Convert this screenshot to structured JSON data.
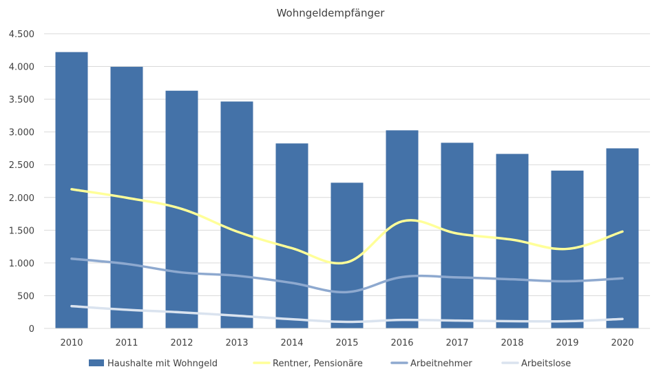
{
  "chart_data": {
    "type": "bar",
    "title": "Wohngeldempfänger",
    "xlabel": "",
    "ylabel": "",
    "categories": [
      "2010",
      "2011",
      "2012",
      "2013",
      "2014",
      "2015",
      "2016",
      "2017",
      "2018",
      "2019",
      "2020"
    ],
    "ylim": [
      0,
      4500
    ],
    "yticks": [
      0,
      500,
      1000,
      1500,
      2000,
      2500,
      3000,
      3500,
      4000,
      4500
    ],
    "ytick_labels": [
      "0",
      "500",
      "1.000",
      "1.500",
      "2.000",
      "2.500",
      "3.000",
      "3.500",
      "4.000",
      "4.500"
    ],
    "grid": true,
    "legend_position": "bottom",
    "series": [
      {
        "name": "Haushalte mit Wohngeld",
        "type": "bar",
        "color": "#4472a8",
        "values": [
          4220,
          3995,
          3630,
          3465,
          2825,
          2225,
          3025,
          2835,
          2665,
          2410,
          2750
        ]
      },
      {
        "name": "Rentner, Pensionäre",
        "type": "line",
        "color": "#ffff99",
        "values": [
          2125,
          1995,
          1825,
          1480,
          1225,
          1010,
          1635,
          1450,
          1355,
          1215,
          1480
        ]
      },
      {
        "name": "Arbeitnehmer",
        "type": "line",
        "color": "#8ea9cf",
        "values": [
          1065,
          985,
          855,
          805,
          695,
          555,
          785,
          780,
          750,
          720,
          765
        ]
      },
      {
        "name": "Arbeitslose",
        "type": "line",
        "color": "#dae3ef",
        "values": [
          340,
          285,
          245,
          195,
          140,
          100,
          130,
          120,
          110,
          110,
          145
        ]
      }
    ]
  }
}
